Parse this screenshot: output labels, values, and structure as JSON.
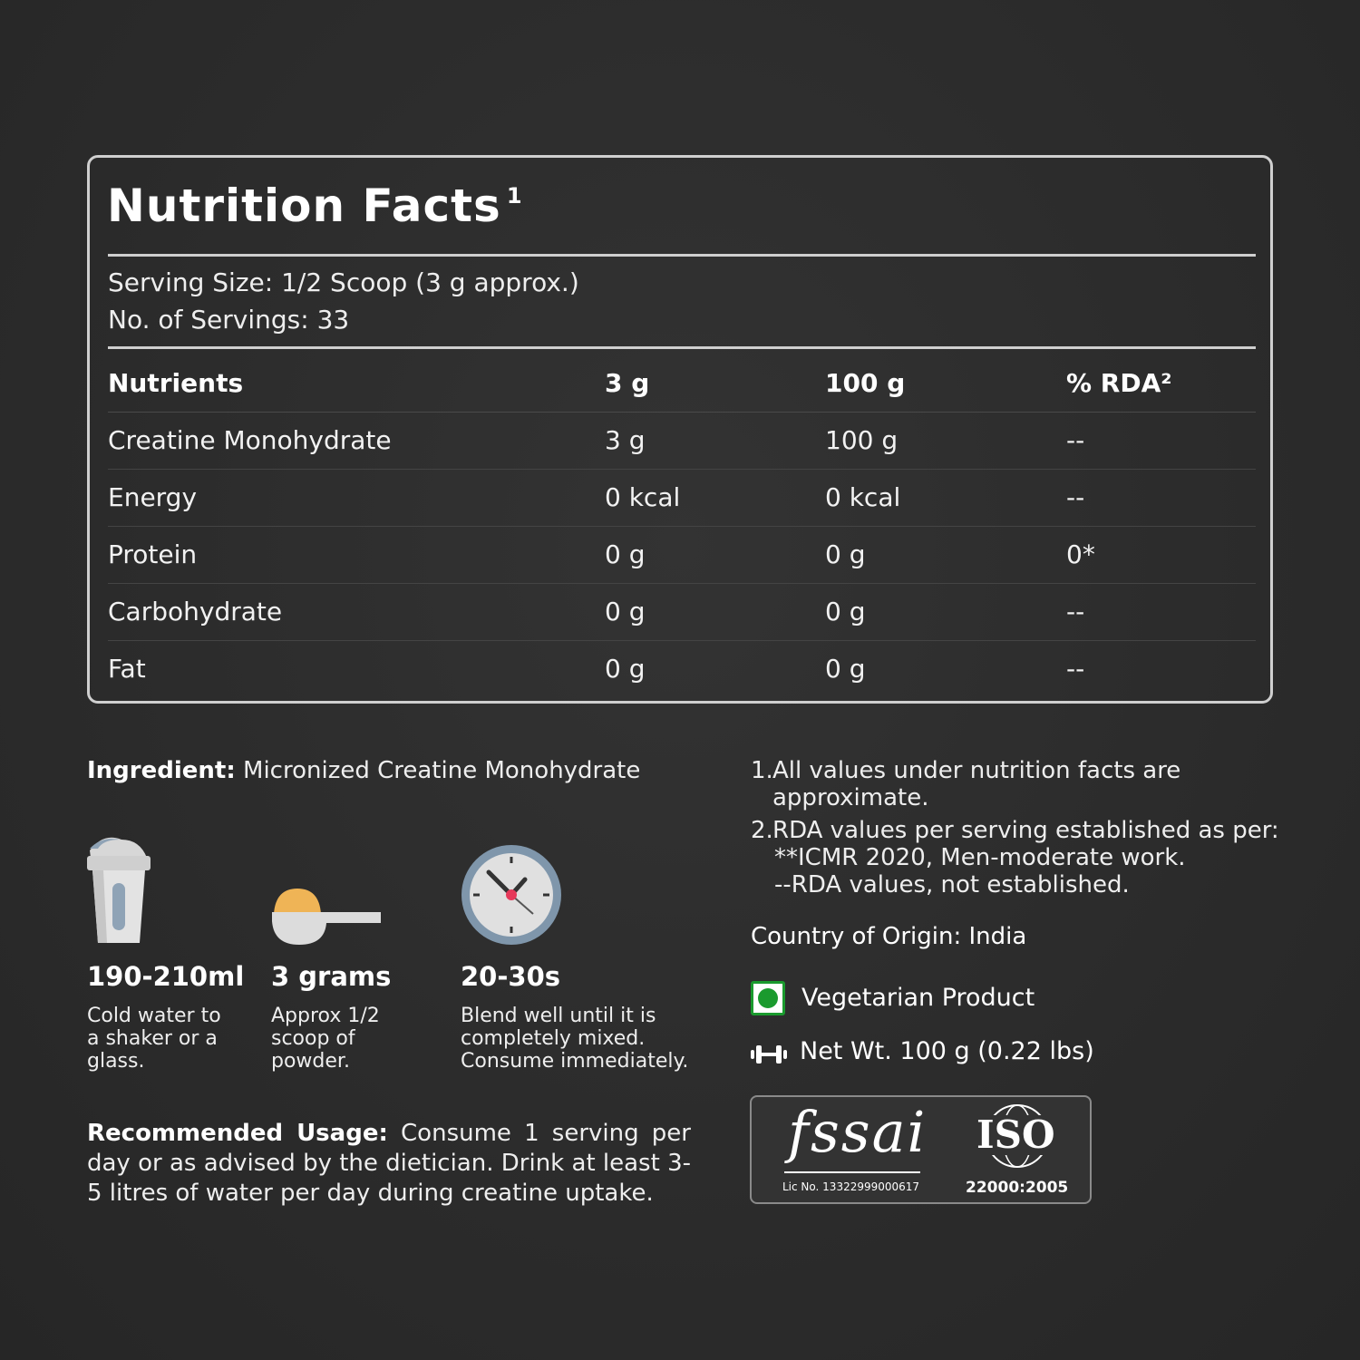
{
  "nutrition": {
    "title": "Nutrition Facts",
    "title_note": "1",
    "serving_size": "Serving Size: 1/2 Scoop (3 g approx.)",
    "servings": "No. of Servings: 33",
    "headers": [
      "Nutrients",
      "3 g",
      "100 g",
      "% RDA²"
    ],
    "rows": [
      [
        "Creatine Monohydrate",
        "3 g",
        "100 g",
        "--"
      ],
      [
        "Energy",
        "0 kcal",
        "0 kcal",
        "--"
      ],
      [
        "Protein",
        "0 g",
        "0 g",
        "0*"
      ],
      [
        "Carbohydrate",
        "0 g",
        "0 g",
        "--"
      ],
      [
        "Fat",
        "0 g",
        "0 g",
        "--"
      ]
    ]
  },
  "ingredient": {
    "label": "Ingredient:",
    "value": "Micronized Creatine Monohydrate"
  },
  "steps": [
    {
      "icon": "shaker-icon",
      "amount": "190-210ml",
      "desc": "Cold water to a shaker or a glass."
    },
    {
      "icon": "scoop-icon",
      "amount": "3 grams",
      "desc": "Approx 1/2 scoop of powder."
    },
    {
      "icon": "clock-icon",
      "amount": "20-30s",
      "desc": "Blend well until it is completely mixed. Consume immediately."
    }
  ],
  "usage": {
    "label": "Recommended Usage:",
    "value": "Consume 1 serving per day or as advised by the dietician. Drink at least 3-5 litres of water per day during creatine uptake."
  },
  "notes": [
    {
      "num": "1.",
      "text": "All values under nutrition facts are approximate."
    },
    {
      "num": "2.",
      "text": "RDA values per serving established as per:",
      "sub": [
        "**ICMR 2020, Men-moderate work.",
        "--RDA values, not established."
      ]
    }
  ],
  "origin": "Country of Origin: India",
  "veg": "Vegetarian Product",
  "net_wt": "Net Wt. 100 g (0.22 lbs)",
  "certs": {
    "fssai_logo": "fssai",
    "fssai_lic": "Lic No. 13322999000617",
    "iso_logo": "ISO",
    "iso_std": "22000:2005"
  },
  "colors": {
    "background": "#2b2b2b",
    "veg_green": "#1a9a2e",
    "border": "#cfcfcf"
  }
}
